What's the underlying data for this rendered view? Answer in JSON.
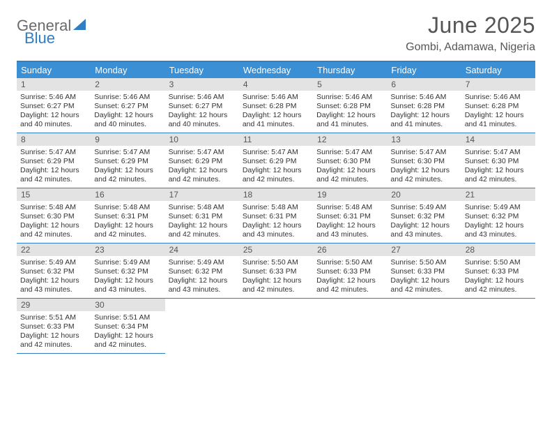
{
  "logo": {
    "word1": "General",
    "word2": "Blue"
  },
  "title": "June 2025",
  "location": "Gombi, Adamawa, Nigeria",
  "colors": {
    "accent": "#3b8fd4",
    "accent_border": "#2f7dc2",
    "daynum_bg": "#e3e3e3",
    "text": "#333333",
    "muted": "#555555"
  },
  "dow": [
    "Sunday",
    "Monday",
    "Tuesday",
    "Wednesday",
    "Thursday",
    "Friday",
    "Saturday"
  ],
  "weeks": [
    [
      {
        "n": "1",
        "sr": "Sunrise: 5:46 AM",
        "ss": "Sunset: 6:27 PM",
        "dl": "Daylight: 12 hours and 40 minutes."
      },
      {
        "n": "2",
        "sr": "Sunrise: 5:46 AM",
        "ss": "Sunset: 6:27 PM",
        "dl": "Daylight: 12 hours and 40 minutes."
      },
      {
        "n": "3",
        "sr": "Sunrise: 5:46 AM",
        "ss": "Sunset: 6:27 PM",
        "dl": "Daylight: 12 hours and 40 minutes."
      },
      {
        "n": "4",
        "sr": "Sunrise: 5:46 AM",
        "ss": "Sunset: 6:28 PM",
        "dl": "Daylight: 12 hours and 41 minutes."
      },
      {
        "n": "5",
        "sr": "Sunrise: 5:46 AM",
        "ss": "Sunset: 6:28 PM",
        "dl": "Daylight: 12 hours and 41 minutes."
      },
      {
        "n": "6",
        "sr": "Sunrise: 5:46 AM",
        "ss": "Sunset: 6:28 PM",
        "dl": "Daylight: 12 hours and 41 minutes."
      },
      {
        "n": "7",
        "sr": "Sunrise: 5:46 AM",
        "ss": "Sunset: 6:28 PM",
        "dl": "Daylight: 12 hours and 41 minutes."
      }
    ],
    [
      {
        "n": "8",
        "sr": "Sunrise: 5:47 AM",
        "ss": "Sunset: 6:29 PM",
        "dl": "Daylight: 12 hours and 42 minutes."
      },
      {
        "n": "9",
        "sr": "Sunrise: 5:47 AM",
        "ss": "Sunset: 6:29 PM",
        "dl": "Daylight: 12 hours and 42 minutes."
      },
      {
        "n": "10",
        "sr": "Sunrise: 5:47 AM",
        "ss": "Sunset: 6:29 PM",
        "dl": "Daylight: 12 hours and 42 minutes."
      },
      {
        "n": "11",
        "sr": "Sunrise: 5:47 AM",
        "ss": "Sunset: 6:29 PM",
        "dl": "Daylight: 12 hours and 42 minutes."
      },
      {
        "n": "12",
        "sr": "Sunrise: 5:47 AM",
        "ss": "Sunset: 6:30 PM",
        "dl": "Daylight: 12 hours and 42 minutes."
      },
      {
        "n": "13",
        "sr": "Sunrise: 5:47 AM",
        "ss": "Sunset: 6:30 PM",
        "dl": "Daylight: 12 hours and 42 minutes."
      },
      {
        "n": "14",
        "sr": "Sunrise: 5:47 AM",
        "ss": "Sunset: 6:30 PM",
        "dl": "Daylight: 12 hours and 42 minutes."
      }
    ],
    [
      {
        "n": "15",
        "sr": "Sunrise: 5:48 AM",
        "ss": "Sunset: 6:30 PM",
        "dl": "Daylight: 12 hours and 42 minutes."
      },
      {
        "n": "16",
        "sr": "Sunrise: 5:48 AM",
        "ss": "Sunset: 6:31 PM",
        "dl": "Daylight: 12 hours and 42 minutes."
      },
      {
        "n": "17",
        "sr": "Sunrise: 5:48 AM",
        "ss": "Sunset: 6:31 PM",
        "dl": "Daylight: 12 hours and 42 minutes."
      },
      {
        "n": "18",
        "sr": "Sunrise: 5:48 AM",
        "ss": "Sunset: 6:31 PM",
        "dl": "Daylight: 12 hours and 43 minutes."
      },
      {
        "n": "19",
        "sr": "Sunrise: 5:48 AM",
        "ss": "Sunset: 6:31 PM",
        "dl": "Daylight: 12 hours and 43 minutes."
      },
      {
        "n": "20",
        "sr": "Sunrise: 5:49 AM",
        "ss": "Sunset: 6:32 PM",
        "dl": "Daylight: 12 hours and 43 minutes."
      },
      {
        "n": "21",
        "sr": "Sunrise: 5:49 AM",
        "ss": "Sunset: 6:32 PM",
        "dl": "Daylight: 12 hours and 43 minutes."
      }
    ],
    [
      {
        "n": "22",
        "sr": "Sunrise: 5:49 AM",
        "ss": "Sunset: 6:32 PM",
        "dl": "Daylight: 12 hours and 43 minutes."
      },
      {
        "n": "23",
        "sr": "Sunrise: 5:49 AM",
        "ss": "Sunset: 6:32 PM",
        "dl": "Daylight: 12 hours and 43 minutes."
      },
      {
        "n": "24",
        "sr": "Sunrise: 5:49 AM",
        "ss": "Sunset: 6:32 PM",
        "dl": "Daylight: 12 hours and 43 minutes."
      },
      {
        "n": "25",
        "sr": "Sunrise: 5:50 AM",
        "ss": "Sunset: 6:33 PM",
        "dl": "Daylight: 12 hours and 42 minutes."
      },
      {
        "n": "26",
        "sr": "Sunrise: 5:50 AM",
        "ss": "Sunset: 6:33 PM",
        "dl": "Daylight: 12 hours and 42 minutes."
      },
      {
        "n": "27",
        "sr": "Sunrise: 5:50 AM",
        "ss": "Sunset: 6:33 PM",
        "dl": "Daylight: 12 hours and 42 minutes."
      },
      {
        "n": "28",
        "sr": "Sunrise: 5:50 AM",
        "ss": "Sunset: 6:33 PM",
        "dl": "Daylight: 12 hours and 42 minutes."
      }
    ],
    [
      {
        "n": "29",
        "sr": "Sunrise: 5:51 AM",
        "ss": "Sunset: 6:33 PM",
        "dl": "Daylight: 12 hours and 42 minutes."
      },
      {
        "n": "30",
        "sr": "Sunrise: 5:51 AM",
        "ss": "Sunset: 6:34 PM",
        "dl": "Daylight: 12 hours and 42 minutes."
      },
      null,
      null,
      null,
      null,
      null
    ]
  ]
}
